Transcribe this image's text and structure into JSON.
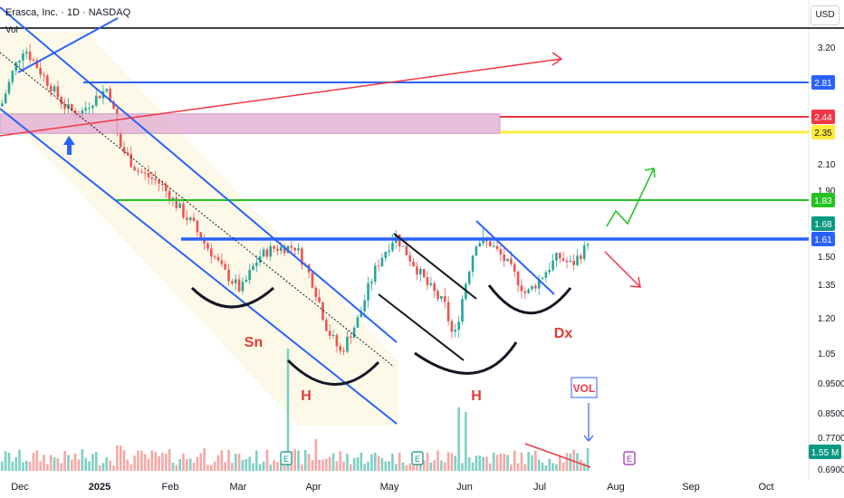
{
  "header": {
    "title": "Erasca, Inc. · 1D · NASDAQ",
    "vol_label": "Vol",
    "currency": "USD"
  },
  "chart_data": {
    "type": "candlestick",
    "symbol": "Erasca, Inc.",
    "interval": "1D",
    "exchange": "NASDAQ",
    "y_scale": "log",
    "y_ticks": [
      "3.20",
      "2.10",
      "1.90",
      "1.50",
      "1.35",
      "1.20",
      "1.05",
      "0.9500",
      "0.8500",
      "0.7700",
      "0.6900"
    ],
    "x_ticks": [
      "Dec",
      "2025",
      "Feb",
      "Mar",
      "Apr",
      "May",
      "Jun",
      "Jul",
      "Aug",
      "Sep",
      "Oct"
    ],
    "price_labels": [
      {
        "value": "2.81",
        "color": "#2962ff"
      },
      {
        "value": "2.44",
        "color": "#f23645"
      },
      {
        "value": "2.35",
        "color": "#ffeb3b"
      },
      {
        "value": "1.83",
        "color": "#22c322"
      },
      {
        "value": "1.68",
        "color": "#089981"
      },
      {
        "value": "1.61",
        "color": "#2962ff"
      }
    ],
    "volume_label": {
      "value": "1.55 M",
      "color": "#089981"
    },
    "horizontal_levels": [
      {
        "price": 2.81,
        "color": "#2962ff"
      },
      {
        "price": 2.44,
        "color": "#f23645"
      },
      {
        "price": 2.35,
        "color": "#ffeb3b"
      },
      {
        "price": 1.83,
        "color": "#22c322"
      },
      {
        "price": 1.61,
        "color": "#2962ff"
      }
    ],
    "annotations": [
      "Sn",
      "H",
      "H",
      "Dx",
      "VOL"
    ],
    "event_markers": [
      "E",
      "E",
      "E",
      "E"
    ],
    "colors": {
      "up": "#26a69a",
      "down": "#ef5350",
      "up_vol": "#7fcfc4",
      "down_vol": "#f4a8a6"
    }
  }
}
